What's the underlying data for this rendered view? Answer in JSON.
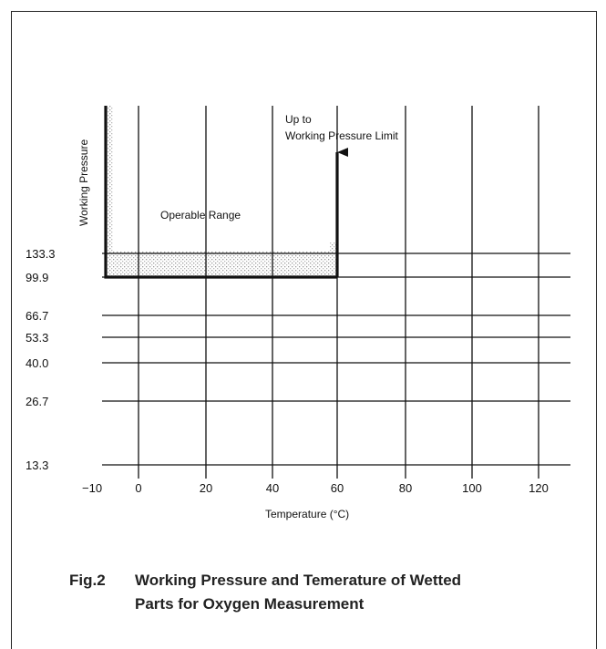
{
  "chart_data": {
    "type": "line",
    "title": "",
    "xlabel": "Temperature (°C)",
    "ylabel": "Working Pressure",
    "x_ticks": [
      "−10",
      "0",
      "20",
      "40",
      "60",
      "80",
      "100",
      "120"
    ],
    "y_ticks": [
      "133.3",
      "99.9",
      "66.7",
      "53.3",
      "40.0",
      "26.7",
      "13.3"
    ],
    "xlim": [
      -10,
      130
    ],
    "operable_range_boundary": {
      "x": [
        -10,
        -10,
        60,
        60
      ],
      "y": [
        "upper limit",
        99.9,
        99.9,
        "upper limit"
      ]
    },
    "annotations": {
      "region": "Operable Range",
      "arrow_line1": "Up to",
      "arrow_line2": "Working Pressure Limit"
    },
    "grid": true
  },
  "caption": {
    "number": "Fig.2",
    "line1": "Working Pressure and Temerature of Wetted",
    "line2": "Parts for Oxygen Measurement"
  }
}
